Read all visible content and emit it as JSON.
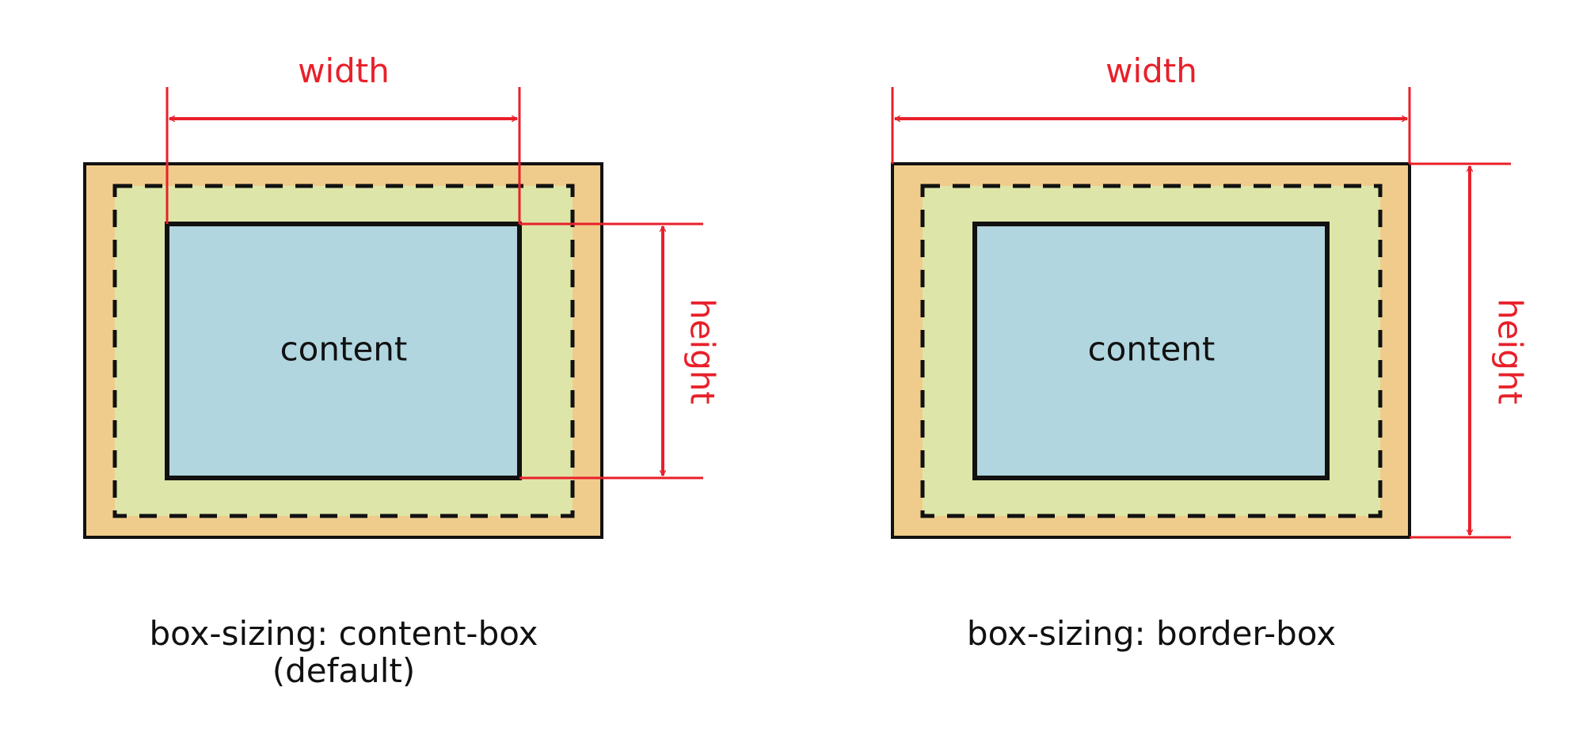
{
  "colors": {
    "margin_fill": "#f0cc8c",
    "padding_fill": "#dde6a8",
    "content_fill": "#b1d6df",
    "stroke": "#111111",
    "dimension": "#e8202a",
    "background": "#ffffff"
  },
  "diagrams": [
    {
      "id": "content-box",
      "content_label": "content",
      "width_label": "width",
      "height_label": "height",
      "caption_line1": "box-sizing: content-box",
      "caption_line2": "(default)"
    },
    {
      "id": "border-box",
      "content_label": "content",
      "width_label": "width",
      "height_label": "height",
      "caption_line1": "box-sizing: border-box"
    }
  ]
}
